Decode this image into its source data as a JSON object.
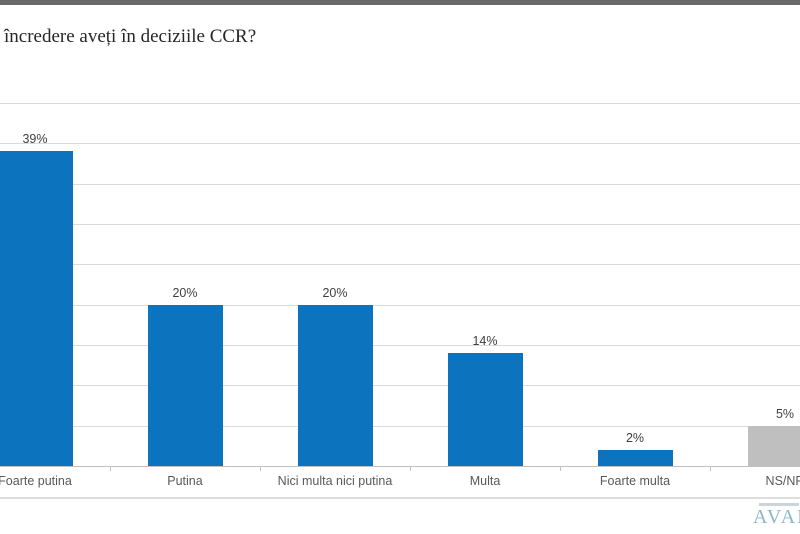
{
  "page": {
    "top_accent_color": "#6a6a6a",
    "background": "#ffffff",
    "divider_color": "#dddddd"
  },
  "chart_data": {
    "type": "bar",
    "title": "încredere aveți în deciziile CCR?",
    "categories": [
      "Foarte putina",
      "Putina",
      "Nici multa nici putina",
      "Multa",
      "Foarte multa",
      "NS/NR"
    ],
    "values": [
      39,
      20,
      20,
      14,
      2,
      5
    ],
    "data_labels": [
      "39%",
      "20%",
      "20%",
      "14%",
      "2%",
      "5%"
    ],
    "bar_colors": [
      "#0c74bf",
      "#0c74bf",
      "#0c74bf",
      "#0c74bf",
      "#0c74bf",
      "#bfbfbf"
    ],
    "xlabel": "",
    "ylabel": "",
    "ylim": [
      0,
      45
    ],
    "gridline_step": 5,
    "grid": true,
    "legend": "none",
    "gridline_color": "#dadada",
    "axis_line_color": "#c0c0c0",
    "value_label_color": "#404040",
    "category_label_color": "#595959"
  },
  "branding": {
    "logo_text": "AVAN",
    "logo_color": "#8cb7cb"
  }
}
